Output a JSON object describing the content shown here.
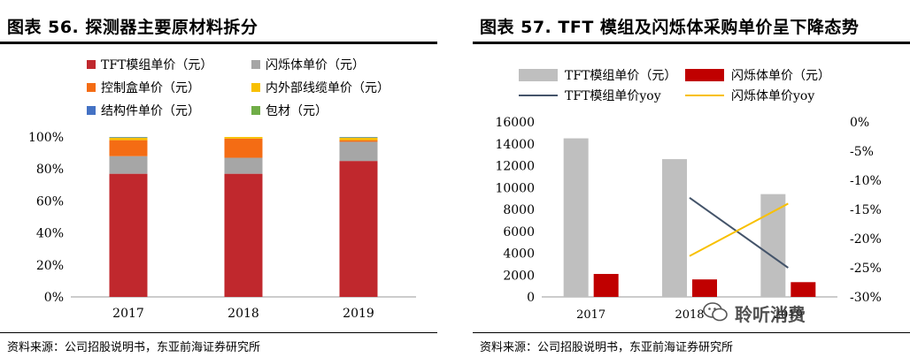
{
  "left_panel": {
    "title": "图表 56. 探测器主要原材料拆分",
    "source": "资料来源：公司招股说明书，东亚前海证券研究所"
  },
  "right_panel": {
    "title": "图表 57. TFT 模组及闪烁体采购单价呈下降态势",
    "source": "资料来源：公司招股说明书，东亚前海证券研究所",
    "watermark": "聆听消费"
  },
  "chart_data": [
    {
      "type": "bar",
      "stacked": true,
      "title": "",
      "categories": [
        "2017",
        "2018",
        "2019"
      ],
      "ylim": [
        0,
        100
      ],
      "y_unit": "%",
      "y_ticks": [
        0,
        20,
        40,
        60,
        80,
        100
      ],
      "legend_position": "top",
      "series": [
        {
          "name": "TFT模组单价（元）",
          "color": "#C0282D",
          "values": [
            77,
            77,
            85
          ]
        },
        {
          "name": "闪烁体单价（元）",
          "color": "#A6A6A6",
          "values": [
            11,
            10,
            12
          ]
        },
        {
          "name": "控制盒单价（元）",
          "color": "#F46C14",
          "values": [
            10,
            12,
            1
          ]
        },
        {
          "name": "内外部线缆单价（元）",
          "color": "#F8C000",
          "values": [
            1.5,
            1,
            1.5
          ]
        },
        {
          "name": "结构件单价（元）",
          "color": "#4472C4",
          "values": [
            0.3,
            0.3,
            0.3
          ]
        },
        {
          "name": "包材（元）",
          "color": "#70AD47",
          "values": [
            0.2,
            0.2,
            0.2
          ]
        }
      ]
    },
    {
      "type": "bar",
      "title": "",
      "categories": [
        "2017",
        "2018",
        "2019"
      ],
      "ylim": [
        0,
        16000
      ],
      "y_ticks": [
        0,
        2000,
        4000,
        6000,
        8000,
        10000,
        12000,
        14000,
        16000
      ],
      "y2lim": [
        -30,
        0
      ],
      "y2_unit": "%",
      "y2_ticks": [
        0,
        -5,
        -10,
        -15,
        -20,
        -25,
        -30
      ],
      "legend_position": "top",
      "series": [
        {
          "name": "TFT模组单价（元）",
          "type": "bar",
          "axis": "left",
          "color": "#BFBFBF",
          "values": [
            14500,
            12600,
            9400
          ]
        },
        {
          "name": "闪烁体单价（元）",
          "type": "bar",
          "axis": "left",
          "color": "#C00000",
          "values": [
            2100,
            1600,
            1350
          ]
        },
        {
          "name": "TFT模组单价yoy",
          "type": "line",
          "axis": "right",
          "color": "#44546A",
          "values": [
            null,
            -13,
            -25
          ]
        },
        {
          "name": "闪烁体单价yoy",
          "type": "line",
          "axis": "right",
          "color": "#F8C000",
          "values": [
            null,
            -23,
            -14
          ]
        }
      ]
    }
  ]
}
